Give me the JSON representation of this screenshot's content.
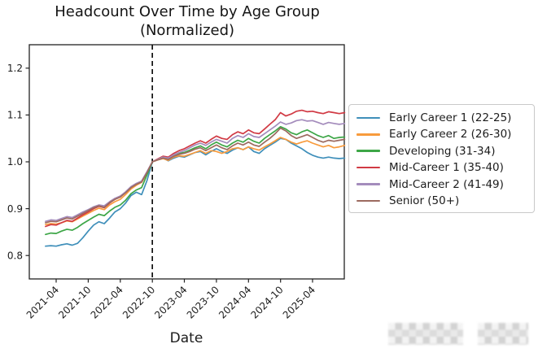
{
  "title": {
    "line1": "Headcount Over Time by Age Group",
    "line2": "(Normalized)"
  },
  "chart_data": {
    "type": "line",
    "title": "Headcount Over Time by Age Group (Normalized)",
    "xlabel": "Date",
    "ylabel": "",
    "ylim": [
      0.75,
      1.25
    ],
    "yticks": [
      0.8,
      0.9,
      1.0,
      1.1,
      1.2
    ],
    "ytick_labels": [
      "1.2",
      "1.1",
      "1.0",
      "0.9",
      "0.8"
    ],
    "xtick_labels": [
      "2021-04",
      "2021-10",
      "2022-04",
      "2022-10",
      "2023-04",
      "2023-10",
      "2024-04",
      "2024-10",
      "2025-04"
    ],
    "xtick_indices": [
      2,
      8,
      14,
      20,
      26,
      32,
      38,
      44,
      50
    ],
    "x_range": {
      "start": "2021-02",
      "end": "2025-10",
      "frequency": "monthly",
      "points": 57
    },
    "grid": false,
    "legend_position": "right",
    "vline": {
      "x_index": 20,
      "at_label": "2022-10",
      "style": "dashed",
      "color": "#111111",
      "meaning": "normalization point (all series = 1.0)"
    },
    "series": [
      {
        "name": "Early Career 1 (22-25)",
        "color": "#3f8fba",
        "values": [
          0.82,
          0.821,
          0.82,
          0.823,
          0.825,
          0.822,
          0.826,
          0.838,
          0.852,
          0.865,
          0.872,
          0.868,
          0.88,
          0.893,
          0.9,
          0.912,
          0.928,
          0.935,
          0.93,
          0.96,
          1.0,
          1.005,
          1.008,
          1.002,
          1.008,
          1.012,
          1.01,
          1.015,
          1.02,
          1.022,
          1.015,
          1.022,
          1.028,
          1.022,
          1.018,
          1.025,
          1.03,
          1.026,
          1.032,
          1.022,
          1.018,
          1.028,
          1.035,
          1.042,
          1.05,
          1.048,
          1.04,
          1.034,
          1.028,
          1.02,
          1.014,
          1.01,
          1.008,
          1.01,
          1.008,
          1.007,
          1.008
        ]
      },
      {
        "name": "Early Career 2 (26-30)",
        "color": "#f89b3d",
        "values": [
          0.866,
          0.868,
          0.867,
          0.87,
          0.874,
          0.872,
          0.878,
          0.884,
          0.89,
          0.896,
          0.901,
          0.898,
          0.908,
          0.915,
          0.92,
          0.93,
          0.942,
          0.95,
          0.956,
          0.975,
          1.0,
          1.004,
          1.007,
          1.003,
          1.01,
          1.013,
          1.012,
          1.016,
          1.02,
          1.024,
          1.018,
          1.024,
          1.022,
          1.018,
          1.022,
          1.028,
          1.03,
          1.026,
          1.032,
          1.028,
          1.025,
          1.032,
          1.038,
          1.045,
          1.052,
          1.048,
          1.042,
          1.038,
          1.042,
          1.045,
          1.04,
          1.036,
          1.032,
          1.035,
          1.03,
          1.032,
          1.035
        ]
      },
      {
        "name": "Developing (31-34)",
        "color": "#3da647",
        "values": [
          0.845,
          0.848,
          0.847,
          0.852,
          0.856,
          0.854,
          0.86,
          0.868,
          0.875,
          0.882,
          0.888,
          0.885,
          0.895,
          0.903,
          0.908,
          0.918,
          0.932,
          0.94,
          0.945,
          0.972,
          1.0,
          1.005,
          1.01,
          1.006,
          1.014,
          1.018,
          1.02,
          1.025,
          1.03,
          1.034,
          1.028,
          1.036,
          1.042,
          1.036,
          1.032,
          1.04,
          1.046,
          1.042,
          1.05,
          1.044,
          1.04,
          1.05,
          1.058,
          1.066,
          1.075,
          1.07,
          1.062,
          1.058,
          1.064,
          1.068,
          1.062,
          1.056,
          1.052,
          1.056,
          1.05,
          1.052,
          1.053
        ]
      },
      {
        "name": "Mid-Career 1 (35-40)",
        "color": "#d13a44",
        "values": [
          0.862,
          0.866,
          0.865,
          0.87,
          0.875,
          0.873,
          0.88,
          0.887,
          0.893,
          0.9,
          0.905,
          0.902,
          0.912,
          0.92,
          0.925,
          0.935,
          0.946,
          0.953,
          0.958,
          0.978,
          1.0,
          1.006,
          1.012,
          1.01,
          1.018,
          1.024,
          1.028,
          1.034,
          1.04,
          1.045,
          1.04,
          1.048,
          1.055,
          1.05,
          1.048,
          1.058,
          1.064,
          1.06,
          1.068,
          1.062,
          1.06,
          1.07,
          1.08,
          1.09,
          1.105,
          1.098,
          1.102,
          1.108,
          1.11,
          1.107,
          1.108,
          1.105,
          1.103,
          1.107,
          1.105,
          1.103,
          1.105
        ]
      },
      {
        "name": "Mid-Career 2 (41-49)",
        "color": "#a48cbc",
        "values": [
          0.873,
          0.876,
          0.875,
          0.879,
          0.883,
          0.881,
          0.887,
          0.893,
          0.898,
          0.904,
          0.908,
          0.906,
          0.915,
          0.922,
          0.927,
          0.936,
          0.947,
          0.954,
          0.959,
          0.979,
          1.0,
          1.005,
          1.01,
          1.008,
          1.015,
          1.02,
          1.024,
          1.03,
          1.036,
          1.04,
          1.035,
          1.042,
          1.048,
          1.044,
          1.04,
          1.05,
          1.056,
          1.052,
          1.06,
          1.054,
          1.052,
          1.06,
          1.068,
          1.076,
          1.085,
          1.08,
          1.083,
          1.088,
          1.09,
          1.087,
          1.088,
          1.084,
          1.08,
          1.084,
          1.082,
          1.08,
          1.082
        ]
      },
      {
        "name": "Senior (50+)",
        "color": "#9c6a5f",
        "values": [
          0.87,
          0.873,
          0.872,
          0.876,
          0.88,
          0.878,
          0.884,
          0.89,
          0.896,
          0.902,
          0.906,
          0.903,
          0.913,
          0.92,
          0.925,
          0.934,
          0.945,
          0.952,
          0.957,
          0.977,
          1.0,
          1.004,
          1.008,
          1.005,
          1.012,
          1.016,
          1.018,
          1.022,
          1.027,
          1.03,
          1.024,
          1.03,
          1.036,
          1.03,
          1.026,
          1.034,
          1.04,
          1.036,
          1.042,
          1.036,
          1.033,
          1.042,
          1.05,
          1.06,
          1.072,
          1.066,
          1.056,
          1.05,
          1.054,
          1.058,
          1.052,
          1.046,
          1.042,
          1.046,
          1.044,
          1.046,
          1.048
        ]
      }
    ]
  },
  "watermark": {
    "type": "pixelated-blur",
    "text": ""
  }
}
